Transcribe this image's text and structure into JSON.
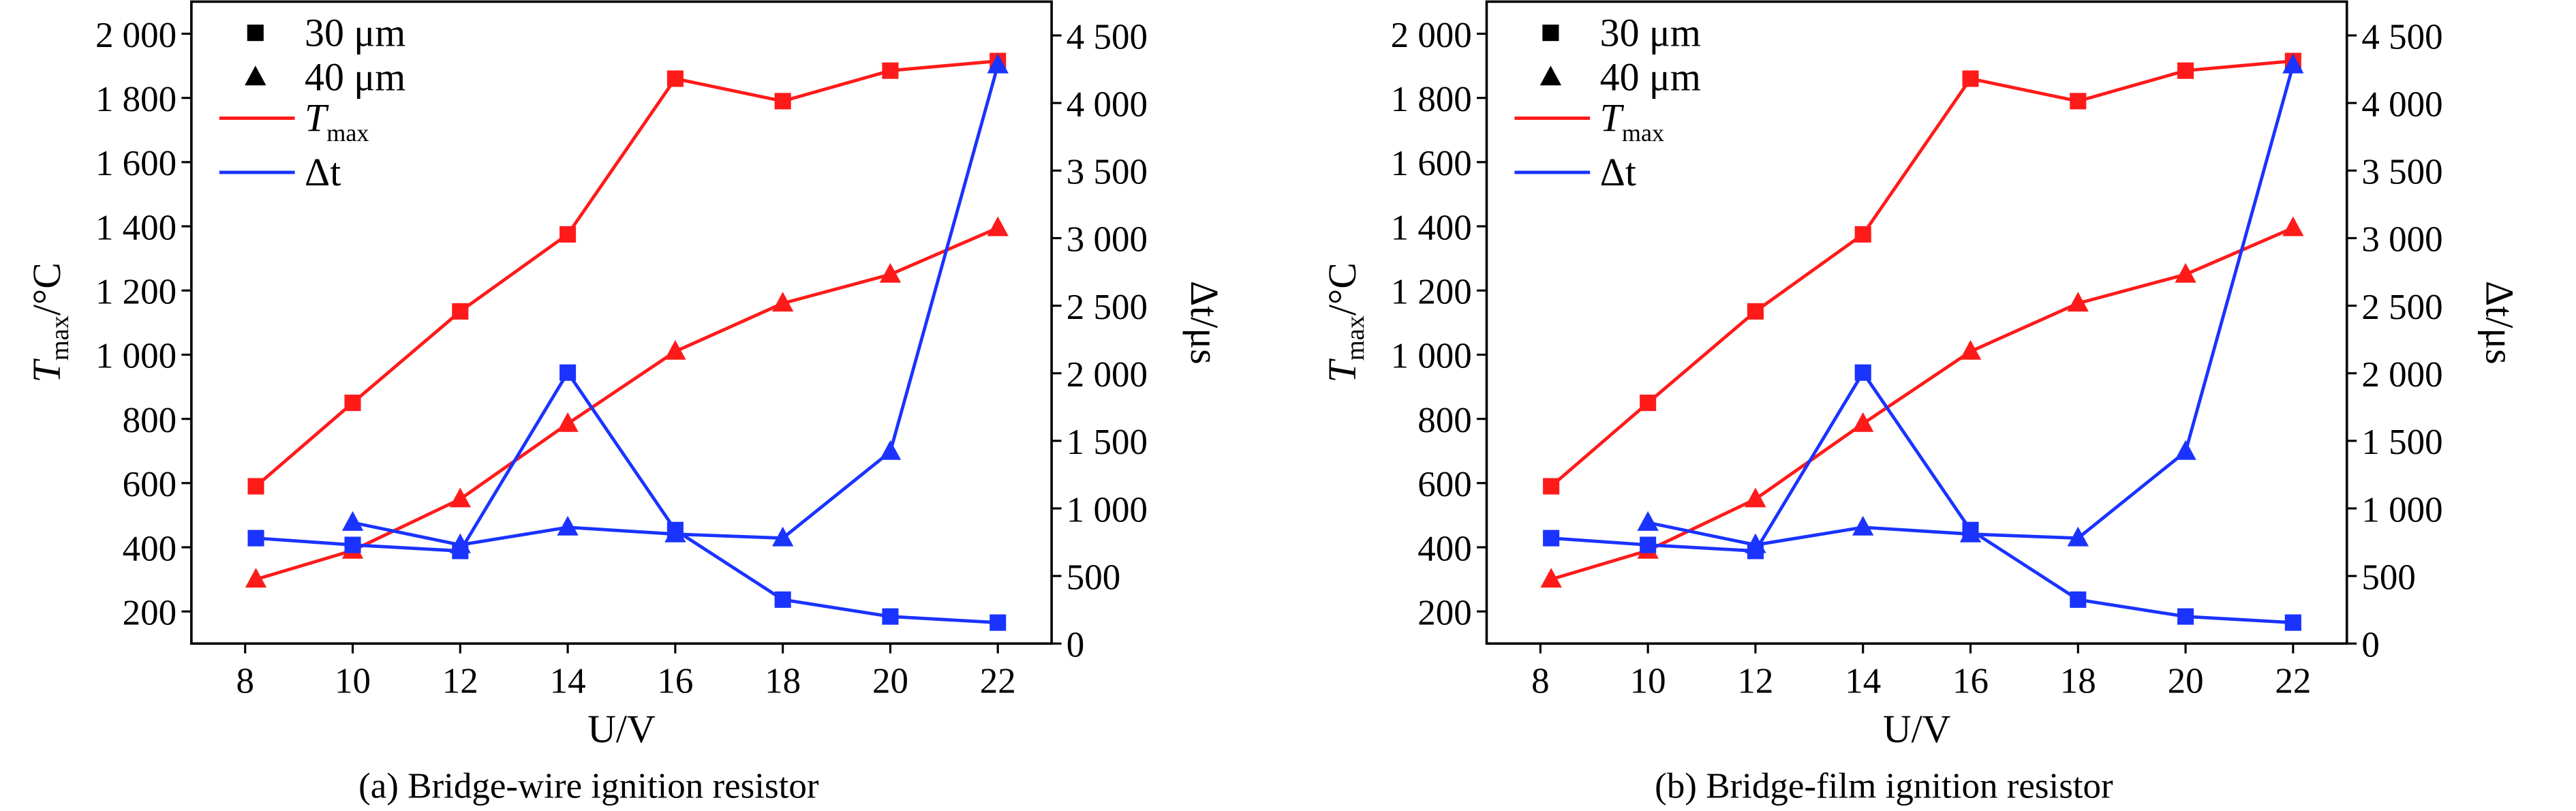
{
  "colors": {
    "tmax": "#ff1a1a",
    "dt": "#1a33ff",
    "axis": "#000000"
  },
  "chart_data": [
    {
      "type": "line",
      "caption": "(a) Bridge-wire ignition resistor",
      "xlabel": "U/V",
      "ylabel_left": {
        "main": "T",
        "sub": "max",
        "unit": "/°C"
      },
      "ylabel_right": {
        "main": "Δt",
        "unit": "/μs"
      },
      "xlim": [
        7,
        23
      ],
      "ylim_left": [
        100,
        2100
      ],
      "ylim_right": [
        0,
        4750
      ],
      "x_ticks": [
        "8",
        "10",
        "12",
        "14",
        "16",
        "18",
        "20",
        "22"
      ],
      "y_left_ticks": [
        "200",
        "400",
        "600",
        "800",
        "1 000",
        "1 200",
        "1 400",
        "1 600",
        "1 800",
        "2 000"
      ],
      "y_right_ticks": [
        "0",
        "500",
        "1 000",
        "1 500",
        "2 000",
        "2 500",
        "3 000",
        "3 500",
        "4 000",
        "4 500"
      ],
      "legend": {
        "position": "top-left",
        "items": [
          "30 μm",
          "40 μm",
          "T",
          "max",
          "Δt"
        ]
      },
      "x": [
        8.2,
        10,
        12,
        14,
        16,
        18,
        20,
        22
      ],
      "series": [
        {
          "name": "Tmax 30 μm",
          "axis": "left",
          "marker": "square",
          "color": "tmax",
          "values": [
            590,
            850,
            1135,
            1375,
            1860,
            1790,
            1885,
            1915
          ]
        },
        {
          "name": "Tmax 40 μm",
          "axis": "left",
          "marker": "triangle",
          "color": "tmax",
          "values": [
            300,
            390,
            550,
            785,
            1010,
            1160,
            1250,
            1395
          ]
        },
        {
          "name": "Δt 30 μm",
          "axis": "right",
          "marker": "square",
          "color": "dt",
          "values": [
            780,
            730,
            685,
            2005,
            840,
            325,
            200,
            155
          ]
        },
        {
          "name": "Δt 40 μm",
          "axis": "right",
          "marker": "triangle",
          "color": "dt",
          "values": [
            null,
            895,
            730,
            860,
            810,
            780,
            1420,
            4280
          ]
        }
      ]
    },
    {
      "type": "line",
      "caption": "(b) Bridge-film ignition resistor",
      "xlabel": "U/V",
      "ylabel_left": {
        "main": "T",
        "sub": "max",
        "unit": "/°C"
      },
      "ylabel_right": {
        "main": "Δt",
        "unit": "/μs"
      },
      "xlim": [
        7,
        23
      ],
      "ylim_left": [
        100,
        2100
      ],
      "ylim_right": [
        0,
        4750
      ],
      "x_ticks": [
        "8",
        "10",
        "12",
        "14",
        "16",
        "18",
        "20",
        "22"
      ],
      "y_left_ticks": [
        "200",
        "400",
        "600",
        "800",
        "1 000",
        "1 200",
        "1 400",
        "1 600",
        "1 800",
        "2 000"
      ],
      "y_right_ticks": [
        "0",
        "500",
        "1 000",
        "1 500",
        "2 000",
        "2 500",
        "3 000",
        "3 500",
        "4 000",
        "4 500"
      ],
      "legend": {
        "position": "top-left",
        "items": [
          "30 μm",
          "40 μm",
          "T",
          "max",
          "Δt"
        ]
      },
      "x": [
        8.2,
        10,
        12,
        14,
        16,
        18,
        20,
        22
      ],
      "series": [
        {
          "name": "Tmax 30 μm",
          "axis": "left",
          "marker": "square",
          "color": "tmax",
          "values": [
            590,
            850,
            1135,
            1375,
            1860,
            1790,
            1885,
            1915
          ]
        },
        {
          "name": "Tmax 40 μm",
          "axis": "left",
          "marker": "triangle",
          "color": "tmax",
          "values": [
            300,
            390,
            550,
            785,
            1010,
            1160,
            1250,
            1395
          ]
        },
        {
          "name": "Δt 30 μm",
          "axis": "right",
          "marker": "square",
          "color": "dt",
          "values": [
            780,
            730,
            685,
            2005,
            840,
            325,
            200,
            155
          ]
        },
        {
          "name": "Δt 40 μm",
          "axis": "right",
          "marker": "triangle",
          "color": "dt",
          "values": [
            null,
            895,
            730,
            860,
            810,
            780,
            1420,
            4280
          ]
        }
      ]
    }
  ]
}
